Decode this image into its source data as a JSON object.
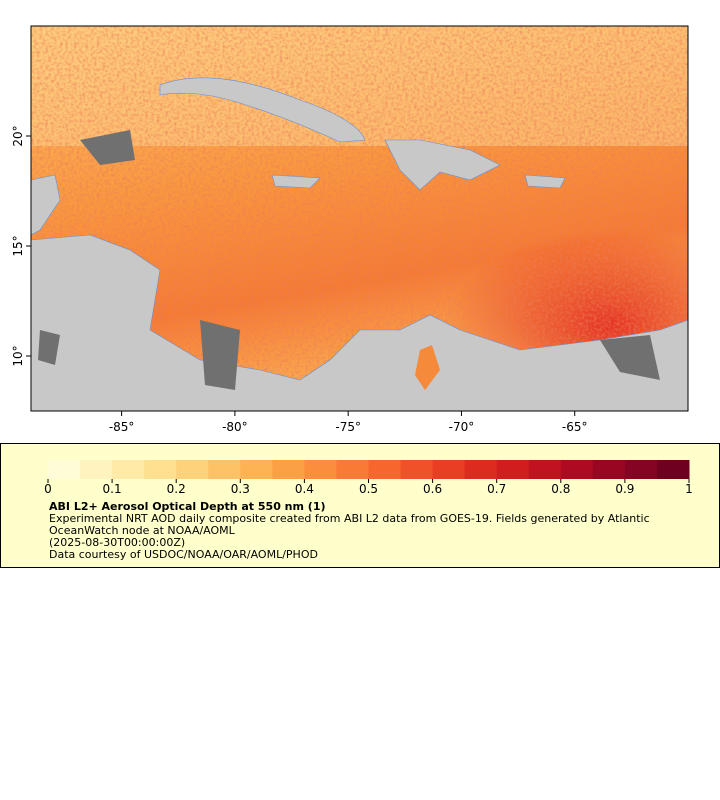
{
  "map": {
    "xlim": [
      -89,
      -60
    ],
    "ylim": [
      7.5,
      25
    ],
    "xticks": [
      {
        "value": -85,
        "label": "-85°"
      },
      {
        "value": -80,
        "label": "-80°"
      },
      {
        "value": -75,
        "label": "-75°"
      },
      {
        "value": -70,
        "label": "-70°"
      },
      {
        "value": -65,
        "label": "-65°"
      }
    ],
    "yticks": [
      {
        "value": 10,
        "label": "10°"
      },
      {
        "value": 15,
        "label": "15°"
      },
      {
        "value": 20,
        "label": "20°"
      }
    ]
  },
  "colorbar": {
    "range": [
      0,
      1
    ],
    "ticks": [
      0,
      0.1,
      0.2,
      0.3,
      0.4,
      0.5,
      0.6,
      0.7,
      0.8,
      0.9,
      1
    ],
    "colors": [
      "#fffcd8",
      "#fff3c0",
      "#ffeaa8",
      "#fee090",
      "#fdd27a",
      "#fdc266",
      "#fdb254",
      "#fca046",
      "#fb8e3c",
      "#f97a34",
      "#f6662d",
      "#f15128",
      "#e93d24",
      "#de2b20",
      "#d11d1e",
      "#c1121f",
      "#ae0a21",
      "#990622",
      "#860423",
      "#700020"
    ]
  },
  "legend": {
    "title": "ABI L2+ Aerosol Optical Depth at 550 nm (1)",
    "lines": [
      "Experimental NRT AOD daily composite created from ABI L2 data from GOES-19. Fields generated by Atlantic OceanWatch node at NOAA/AOML",
      "(2025-08-30T00:00:00Z)",
      "Data courtesy of USDOC/NOAA/OAR/AOML/PHOD"
    ]
  }
}
